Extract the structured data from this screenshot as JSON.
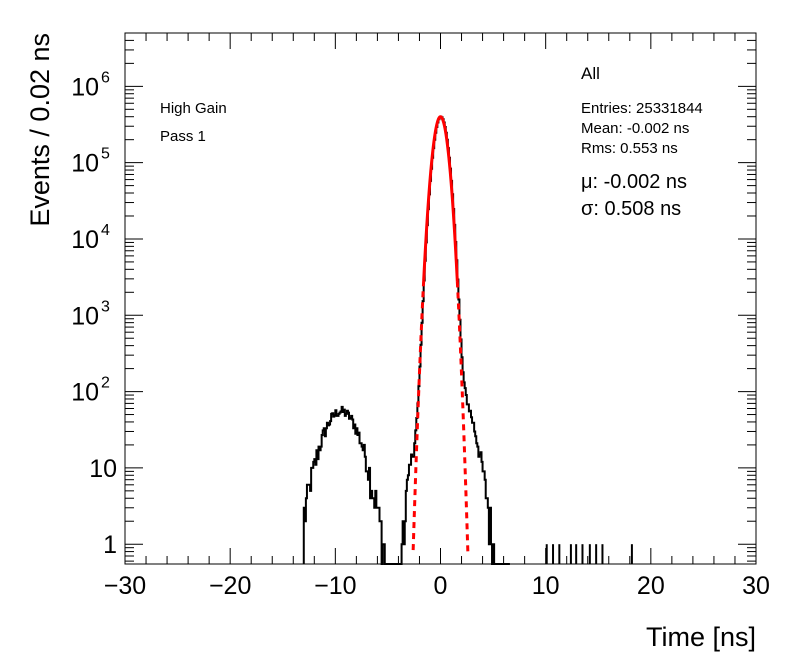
{
  "chart_data": {
    "type": "histogram",
    "xlabel": "Time [ns]",
    "ylabel": "Events / 0.02 ns",
    "xlim": [
      -30,
      30
    ],
    "ylim": [
      0.55,
      5000000
    ],
    "yscale": "log",
    "x_ticks": [
      -30,
      -20,
      -10,
      0,
      10,
      20,
      30
    ],
    "x_tick_labels": [
      "−30",
      "−20",
      "−10",
      "0",
      "10",
      "20",
      "30"
    ],
    "y_ticks": [
      {
        "value": 1,
        "base": "1",
        "exp": ""
      },
      {
        "value": 10,
        "base": "10",
        "exp": ""
      },
      {
        "value": 100,
        "base": "10",
        "exp": "2"
      },
      {
        "value": 1000,
        "base": "10",
        "exp": "3"
      },
      {
        "value": 10000,
        "base": "10",
        "exp": "4"
      },
      {
        "value": 100000,
        "base": "10",
        "exp": "5"
      },
      {
        "value": 1000000,
        "base": "10",
        "exp": "6"
      }
    ],
    "labels": [
      "High Gain",
      "Pass 1"
    ],
    "stats": {
      "title": "All",
      "entries": "Entries: 25331844",
      "mean": "Mean: -0.002 ns",
      "rms": "Rms: 0.553 ns",
      "mu": "μ: -0.002 ns",
      "sigma": "σ: 0.508 ns"
    },
    "series": [
      {
        "type": "histogram",
        "color": "#000000",
        "main_peak": {
          "center": 0.0,
          "sigma": 0.508,
          "amplitude": 400000
        },
        "secondary_peak": {
          "center": -9.5,
          "sigma": 1.4,
          "amplitude": 55
        },
        "right_tail": {
          "center": 1.0,
          "sigma": 1.25,
          "amplitude": 150
        },
        "isolated_events_x": [
          10.1,
          10.7,
          11.3,
          12.4,
          12.9,
          13.5,
          14.2,
          14.8,
          15.4,
          18.2
        ]
      },
      {
        "type": "gaussian_fit",
        "color": "#ff0000",
        "mu": -0.002,
        "sigma": 0.508,
        "amplitude": 400000,
        "solid_range": [
          -1.6,
          1.6
        ],
        "dashed_range": [
          -2.6,
          2.6
        ]
      }
    ]
  }
}
